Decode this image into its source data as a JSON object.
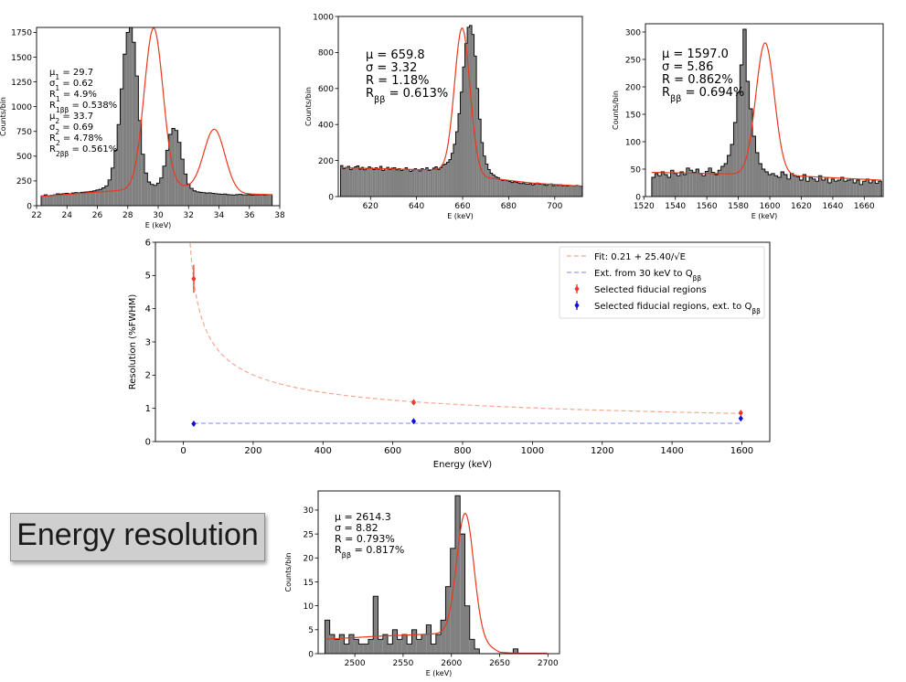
{
  "label": "Energy resolution",
  "colors": {
    "hist_fill": "#808080",
    "hist_edge": "#000000",
    "fit_line": "#e8391f",
    "fit_curve": "#f4a896",
    "ext_line": "#9b9bf2",
    "sel_points": "#e8392a",
    "ext_points": "#1010d8"
  },
  "chart_data": [
    {
      "id": "p1",
      "type": "histogram",
      "xlabel": "E (keV)",
      "ylabel": "Counts/bin",
      "xlim": [
        22,
        38
      ],
      "ylim": [
        0,
        1800
      ],
      "xticks": [
        22,
        24,
        26,
        28,
        30,
        32,
        34,
        36,
        38
      ],
      "yticks": [
        0,
        250,
        500,
        750,
        1000,
        1250,
        1500,
        1750
      ],
      "annotations": [
        "μ1 = 29.7",
        "σ1 = 0.62",
        "R1 = 4.9%",
        "R1ββ = 0.538%",
        "μ2 = 33.7",
        "σ2 = 0.69",
        "R2 = 4.78%",
        "R2ββ = 0.561%"
      ],
      "bins": {
        "start": 22.3,
        "width": 0.2,
        "counts": [
          100,
          110,
          100,
          105,
          110,
          120,
          118,
          122,
          125,
          120,
          128,
          132,
          130,
          135,
          138,
          140,
          145,
          150,
          158,
          165,
          180,
          200,
          260,
          380,
          560,
          820,
          1180,
          1530,
          1750,
          1800,
          1650,
          1310,
          860,
          520,
          330,
          240,
          215,
          205,
          228,
          280,
          400,
          560,
          720,
          780,
          760,
          640,
          470,
          320,
          220,
          175,
          150,
          140,
          135,
          132,
          128,
          130,
          125,
          122,
          118,
          115,
          118,
          112,
          110,
          108,
          112,
          115,
          110,
          110,
          112,
          108,
          112,
          110,
          112,
          108,
          110,
          110
        ]
      },
      "fit": [
        {
          "mu": 29.7,
          "sigma": 0.62,
          "amp": 1620
        },
        {
          "mu": 33.7,
          "sigma": 0.69,
          "amp": 620
        }
      ],
      "fit_background": [
        [
          22.3,
          95
        ],
        [
          28.0,
          160
        ],
        [
          31.5,
          190
        ],
        [
          35.5,
          120
        ],
        [
          37.4,
          112
        ]
      ]
    },
    {
      "id": "p2",
      "type": "histogram",
      "xlabel": "E (keV)",
      "ylabel": "Counts/bin",
      "xlim": [
        606,
        712
      ],
      "ylim": [
        0,
        1000
      ],
      "xticks": [
        620,
        640,
        660,
        680,
        700
      ],
      "yticks": [
        0,
        200,
        400,
        600,
        800,
        1000
      ],
      "annotations": [
        "μ = 659.8",
        "σ = 3.32",
        "R = 1.18%",
        "Rββ = 0.613%"
      ],
      "bins": {
        "start": 607.0,
        "width": 1.0,
        "counts": [
          172,
          155,
          162,
          168,
          150,
          158,
          165,
          170,
          152,
          162,
          148,
          155,
          165,
          158,
          150,
          160,
          152,
          168,
          145,
          155,
          162,
          150,
          158,
          160,
          148,
          155,
          145,
          152,
          160,
          150,
          140,
          148,
          155,
          150,
          142,
          155,
          150,
          160,
          145,
          150,
          158,
          165,
          150,
          160,
          175,
          180,
          190,
          205,
          240,
          290,
          360,
          460,
          580,
          720,
          850,
          940,
          950,
          900,
          780,
          600,
          430,
          300,
          225,
          180,
          150,
          130,
          120,
          110,
          105,
          95,
          90,
          92,
          88,
          85,
          78,
          82,
          80,
          75,
          72,
          76,
          70,
          68,
          72,
          65,
          70,
          75,
          68,
          70,
          66,
          62,
          68,
          70,
          60,
          65,
          62,
          66,
          60,
          64,
          58,
          62,
          60,
          58,
          62,
          60,
          56
        ]
      },
      "fit": [
        {
          "mu": 659.8,
          "sigma": 3.32,
          "amp": 790
        }
      ],
      "fit_background": [
        [
          607,
          160
        ],
        [
          640,
          150
        ],
        [
          655,
          148
        ],
        [
          662,
          145
        ],
        [
          670,
          105
        ],
        [
          690,
          75
        ],
        [
          711,
          58
        ]
      ]
    },
    {
      "id": "p3",
      "type": "histogram",
      "xlabel": "E (keV)",
      "ylabel": "Counts/bin",
      "xlim": [
        1521,
        1672
      ],
      "ylim": [
        0,
        315
      ],
      "xticks": [
        1520,
        1540,
        1560,
        1580,
        1600,
        1620,
        1640,
        1660
      ],
      "yticks": [
        0,
        50,
        100,
        150,
        200,
        250,
        300
      ],
      "annotations": [
        "μ = 1597.0",
        "σ = 5.86",
        "R = 0.862%",
        "Rββ = 0.694%"
      ],
      "bins": {
        "start": 1525.0,
        "width": 2.0,
        "counts": [
          35,
          42,
          38,
          45,
          40,
          35,
          48,
          42,
          38,
          45,
          40,
          52,
          48,
          44,
          50,
          42,
          38,
          46,
          52,
          44,
          40,
          48,
          55,
          60,
          75,
          95,
          135,
          190,
          240,
          305,
          210,
          160,
          110,
          80,
          60,
          50,
          45,
          40,
          42,
          38,
          35,
          45,
          40,
          32,
          42,
          38,
          36,
          30,
          40,
          28,
          35,
          32,
          28,
          38,
          30,
          35,
          25,
          32,
          28,
          30,
          35,
          28,
          30,
          32,
          25,
          30,
          22,
          28,
          32,
          25,
          30,
          24,
          28
        ]
      },
      "fit": [
        {
          "mu": 1597.0,
          "sigma": 5.86,
          "amp": 240
        }
      ],
      "fit_background": [
        [
          1525,
          44
        ],
        [
          1600,
          40
        ],
        [
          1670,
          30
        ]
      ]
    },
    {
      "id": "p4",
      "type": "scatter",
      "xlabel": "Energy (keV)",
      "ylabel": "Resolution (%FWHM)",
      "xlim": [
        -80,
        1680
      ],
      "ylim": [
        0,
        6
      ],
      "xticks": [
        0,
        200,
        400,
        600,
        800,
        1000,
        1200,
        1400,
        1600
      ],
      "yticks": [
        0,
        1,
        2,
        3,
        4,
        5,
        6
      ],
      "legend_position": "top-right",
      "fit_curve": {
        "a": 0.21,
        "b": 25.4
      },
      "ext_line": {
        "from": 30,
        "to": 1597,
        "value": 0.55
      },
      "series": [
        {
          "name": "Selected fiducial regions",
          "x": [
            29.7,
            659.8,
            1597.0
          ],
          "y": [
            4.9,
            1.18,
            0.862
          ],
          "err": [
            0.42,
            0.08,
            0.07
          ]
        },
        {
          "name": "Selected fiducial regions, ext. to Qββ",
          "x": [
            29.7,
            659.8,
            1597.0
          ],
          "y": [
            0.538,
            0.613,
            0.694
          ],
          "err": [
            0.04,
            0.05,
            0.06
          ]
        }
      ],
      "legend": [
        "Fit: 0.21 + 25.40/√E",
        "Ext. from 30 keV to Qββ",
        "Selected fiducial regions",
        "Selected fiducial regions, ext. to Qββ"
      ]
    },
    {
      "id": "p5",
      "type": "histogram",
      "xlabel": "E (keV)",
      "ylabel": "Counts/bin",
      "xlim": [
        2462,
        2712
      ],
      "ylim": [
        0,
        34
      ],
      "xticks": [
        2500,
        2550,
        2600,
        2650,
        2700
      ],
      "yticks": [
        0,
        5,
        10,
        15,
        20,
        25,
        30
      ],
      "annotations": [
        "μ = 2614.3",
        "σ = 8.82",
        "R = 0.793%",
        "Rββ = 0.817%"
      ],
      "bins": {
        "start": 2469.0,
        "width": 5.0,
        "counts": [
          7,
          4,
          3,
          4,
          2,
          4,
          3,
          2,
          2,
          3,
          12,
          3,
          4,
          2,
          5,
          3,
          4,
          2,
          5,
          3,
          4,
          6,
          2,
          4,
          7,
          14,
          22,
          33,
          25,
          10,
          3,
          1,
          0,
          0,
          0,
          0,
          0,
          0,
          0,
          1,
          0,
          0,
          0,
          0,
          0,
          0
        ]
      },
      "fit": [
        {
          "mu": 2614.3,
          "sigma": 8.82,
          "amp": 25.6
        }
      ],
      "fit_background": [
        [
          2469,
          3.0
        ],
        [
          2520,
          3.6
        ],
        [
          2590,
          4.2
        ],
        [
          2620,
          3.6
        ],
        [
          2650,
          0.3
        ],
        [
          2665,
          0.1
        ]
      ]
    }
  ]
}
